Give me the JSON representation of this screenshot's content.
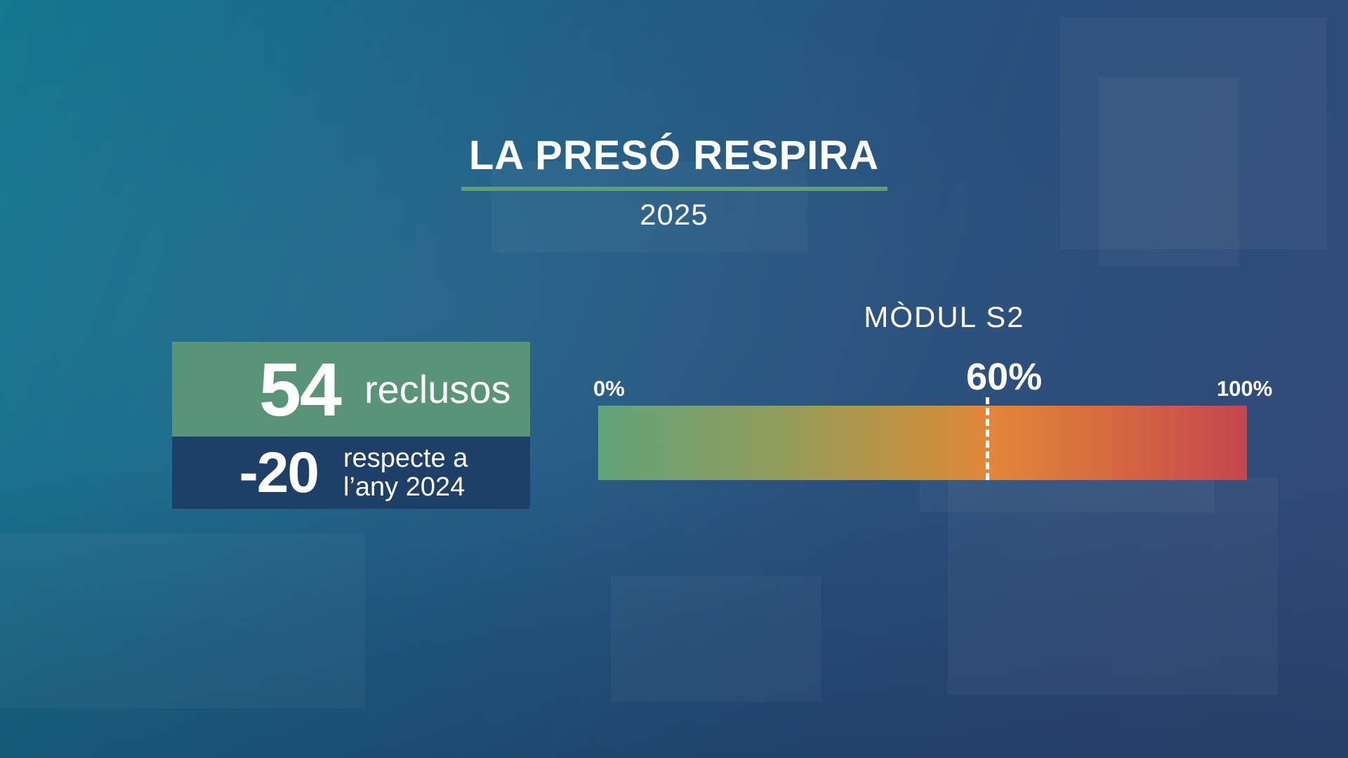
{
  "title": "LA PRESÓ RESPIRA",
  "year": "2025",
  "stats": {
    "inmates_value": "54",
    "inmates_unit": "reclusos",
    "change_value": "-20",
    "change_line1": "respecte a",
    "change_line2": "l’any 2024"
  },
  "gauge": {
    "module_label": "MÒDUL S2",
    "min_label": "0%",
    "max_label": "100%",
    "marker_label": "60%",
    "marker_fraction": 0.6
  },
  "colors": {
    "accent_green": "#5a9478",
    "dark_blue_box": "#1e3f68",
    "gauge_start": "#62a37a",
    "gauge_mid": "#e2873a",
    "gauge_end": "#c4464e"
  }
}
